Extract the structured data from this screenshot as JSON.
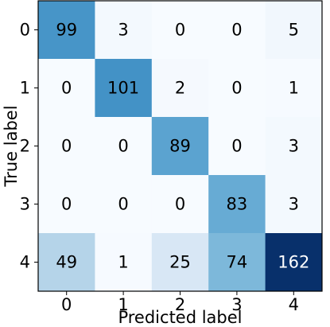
{
  "chart_data": {
    "type": "heatmap",
    "xlabel": "Predicted label",
    "ylabel": "True label",
    "x_ticks": [
      "0",
      "1",
      "2",
      "3",
      "4"
    ],
    "y_ticks": [
      "0",
      "1",
      "2",
      "3",
      "4"
    ],
    "matrix": [
      [
        99,
        3,
        0,
        0,
        5
      ],
      [
        0,
        101,
        2,
        0,
        1
      ],
      [
        0,
        0,
        89,
        0,
        3
      ],
      [
        0,
        0,
        0,
        83,
        3
      ],
      [
        49,
        1,
        25,
        74,
        162
      ]
    ],
    "colormap": "Blues",
    "color_range": [
      0,
      162
    ],
    "text_color_dark": "#000000",
    "text_color_light": "#ffffff"
  }
}
